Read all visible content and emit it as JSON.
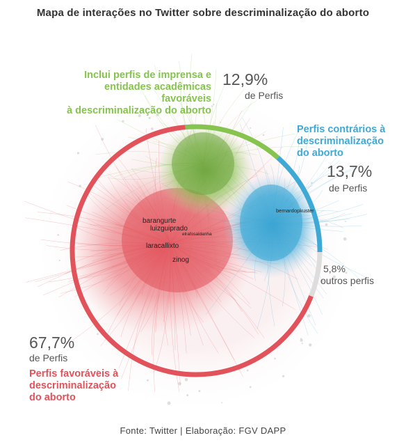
{
  "title": "Mapa de interações no Twitter sobre descriminalização do aborto",
  "colors": {
    "favoraveis": "#e2525b",
    "imprensa": "#86c34f",
    "contrarios": "#3fa9d6",
    "outros": "#dddddd"
  },
  "shares": [
    {
      "key": "favoraveis",
      "value": 67.7
    },
    {
      "key": "imprensa",
      "value": 12.9
    },
    {
      "key": "contrarios",
      "value": 13.7
    },
    {
      "key": "outros",
      "value": 5.8
    }
  ],
  "groups": {
    "imprensa": {
      "percent": "12,9%",
      "unit": "de Perfis",
      "desc": [
        "Inclui perfis de imprensa e",
        "entidades acadêmicas favoráveis",
        "à descriminalização do aborto"
      ]
    },
    "contrarios": {
      "percent": "13,7%",
      "unit": "de Perfis",
      "desc": [
        "Perfis contrários à",
        "descriminalização",
        "do aborto"
      ]
    },
    "outros": {
      "percent": "5,8%",
      "unit": "outros perfis"
    },
    "favoraveis": {
      "percent": "67,7%",
      "unit": "de Perfis",
      "desc": [
        "Perfis favoráveis à",
        "descriminalização",
        "do aborto"
      ]
    }
  },
  "node_labels": {
    "big": [
      "barangurte",
      "luizguiprado",
      "laracallixto",
      "zinog"
    ],
    "small": [
      "elrafosaldanha",
      "bernardopkuster"
    ]
  },
  "footer": "Fonte: Twitter | Elaboração: FGV DAPP"
}
